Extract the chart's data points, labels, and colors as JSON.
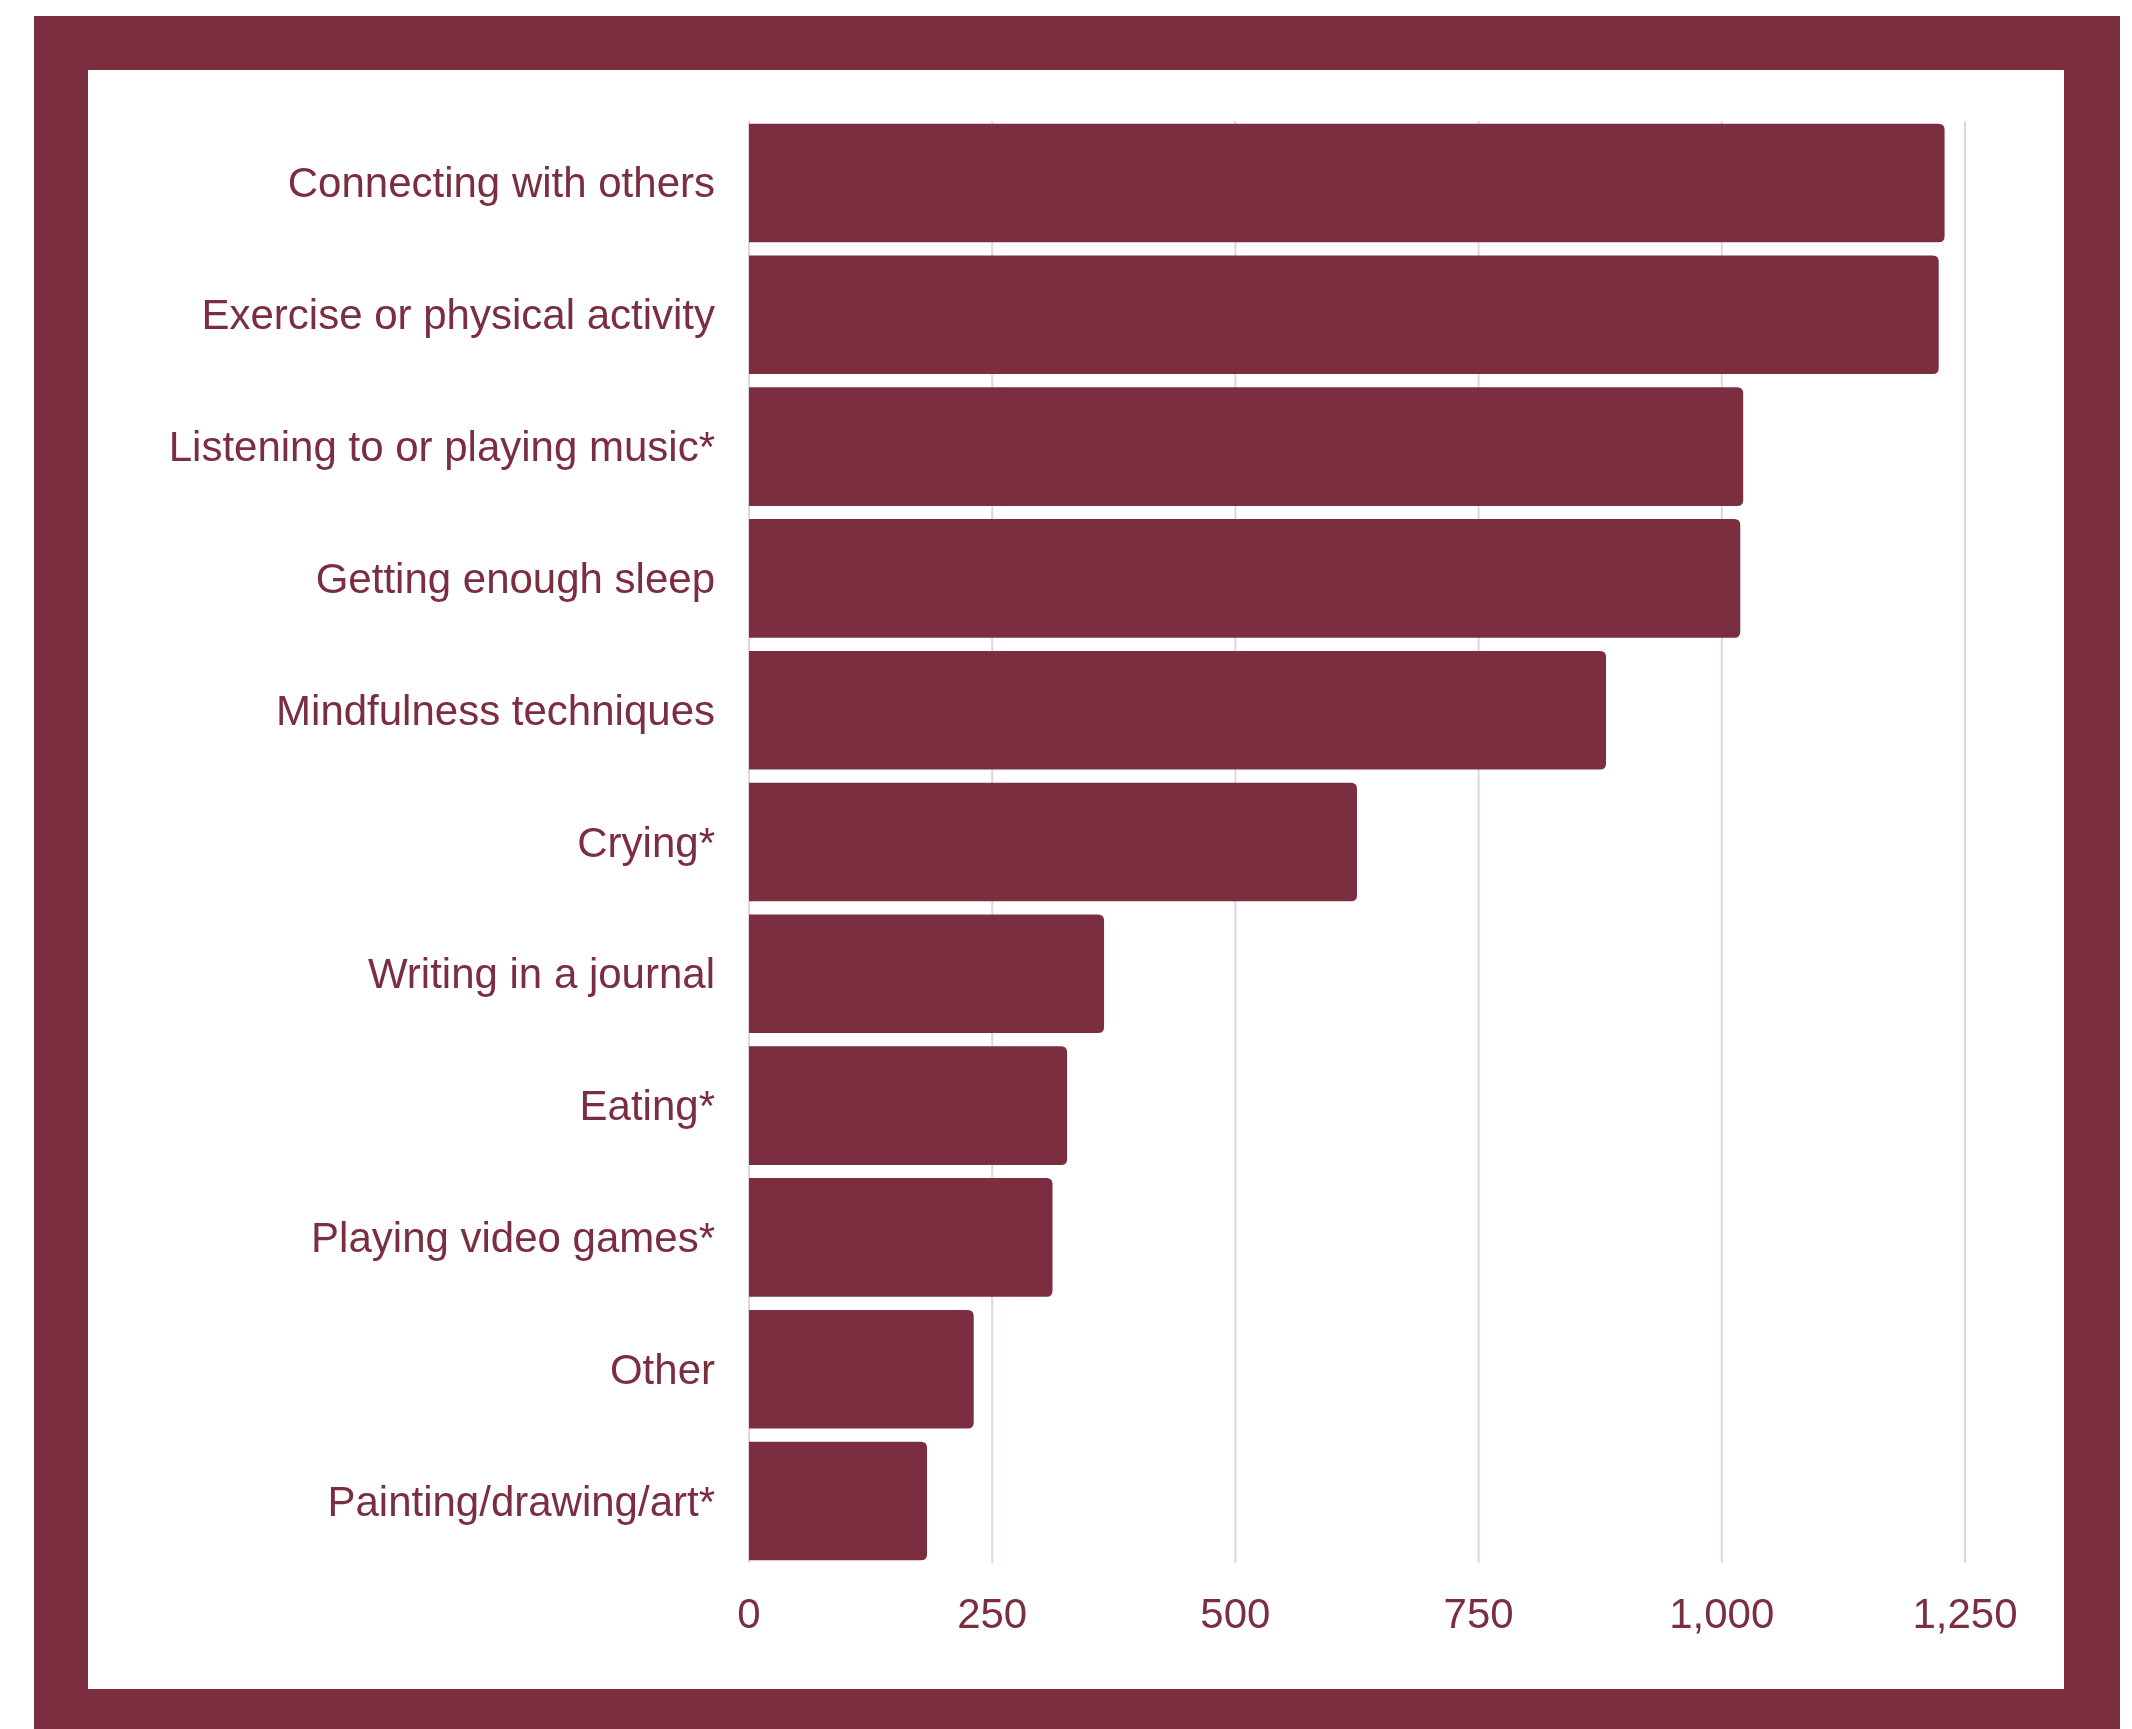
{
  "chart_data": {
    "type": "bar",
    "orientation": "horizontal",
    "categories": [
      "Connecting with others",
      "Exercise or physical activity",
      "Listening to or playing music*",
      "Getting enough sleep",
      "Mindfulness techniques",
      "Crying*",
      "Writing in a journal",
      "Eating*",
      "Playing video games*",
      "Other",
      "Painting/drawing/art*"
    ],
    "values": [
      1229,
      1223,
      1022,
      1019,
      881,
      625,
      365,
      327,
      312,
      231,
      183
    ],
    "color": "#7a2e40",
    "xlim": [
      0,
      1250
    ],
    "xticks": [
      0,
      250,
      500,
      750,
      {
        "value": 1000,
        "label": "1,000"
      },
      {
        "value": 1250,
        "label": "1,250"
      }
    ],
    "grid": "x"
  }
}
